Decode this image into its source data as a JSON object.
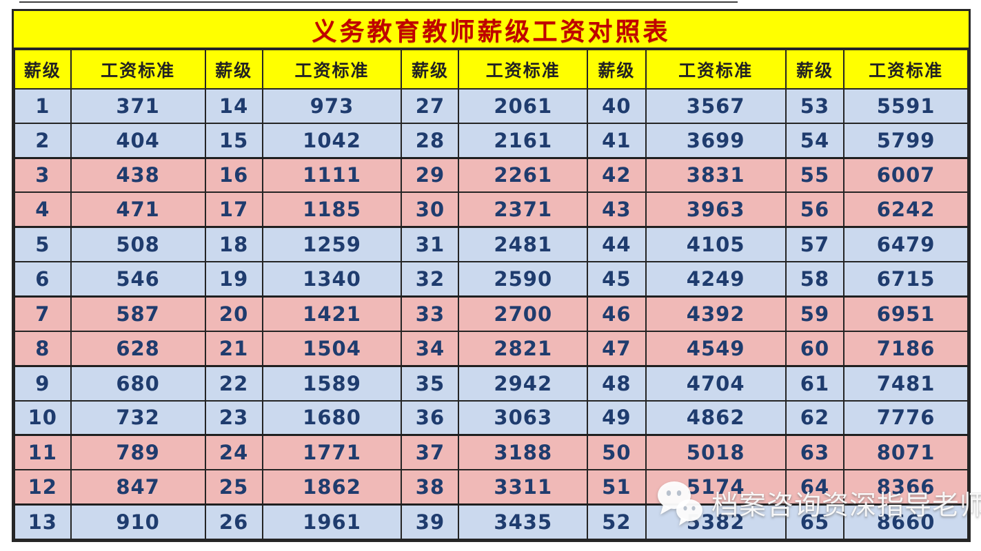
{
  "title": "义务教育教师薪级工资对照表",
  "header": {
    "grade_label": "薪级",
    "salary_label": "工资标准",
    "pair_count": 5
  },
  "table": {
    "groups": [
      {
        "grades": [
          1,
          2,
          3,
          4,
          5,
          6,
          7,
          8,
          9,
          10,
          11,
          12,
          13
        ],
        "salaries": [
          371,
          404,
          438,
          471,
          508,
          546,
          587,
          628,
          680,
          732,
          789,
          847,
          910
        ]
      },
      {
        "grades": [
          14,
          15,
          16,
          17,
          18,
          19,
          20,
          21,
          22,
          23,
          24,
          25,
          26
        ],
        "salaries": [
          973,
          1042,
          1111,
          1185,
          1259,
          1340,
          1421,
          1504,
          1589,
          1680,
          1771,
          1862,
          1961
        ]
      },
      {
        "grades": [
          27,
          28,
          29,
          30,
          31,
          32,
          33,
          34,
          35,
          36,
          37,
          38,
          39
        ],
        "salaries": [
          2061,
          2161,
          2261,
          2371,
          2481,
          2590,
          2700,
          2821,
          2942,
          3063,
          3188,
          3311,
          3435
        ]
      },
      {
        "grades": [
          40,
          41,
          42,
          43,
          44,
          45,
          46,
          47,
          48,
          49,
          50,
          51,
          52
        ],
        "salaries": [
          3567,
          3699,
          3831,
          3963,
          4105,
          4249,
          4392,
          4549,
          4704,
          4862,
          5018,
          5174,
          5382
        ]
      },
      {
        "grades": [
          53,
          54,
          55,
          56,
          57,
          58,
          59,
          60,
          61,
          62,
          63,
          64,
          65
        ],
        "salaries": [
          5591,
          5799,
          6007,
          6242,
          6479,
          6715,
          6951,
          7186,
          7481,
          7776,
          8071,
          8366,
          8660
        ]
      }
    ],
    "row_styles": [
      "blue",
      "blue",
      "pink",
      "pink",
      "blue",
      "blue",
      "pink",
      "pink",
      "blue",
      "blue",
      "pink",
      "pink",
      "blue"
    ]
  },
  "watermark": {
    "icon": "wechat-icon",
    "text": "档案咨询资深指导老师"
  },
  "colors": {
    "title_background": "#ffff00",
    "title_text": "#c00000",
    "header_background": "#ffff00",
    "header_text": "#222222",
    "row_blue": "#cbd9ee",
    "row_pink": "#f0b9b7",
    "number_text": "#1f3c6e",
    "grid_border": "#242424",
    "watermark_text_color": "#ffffff"
  }
}
